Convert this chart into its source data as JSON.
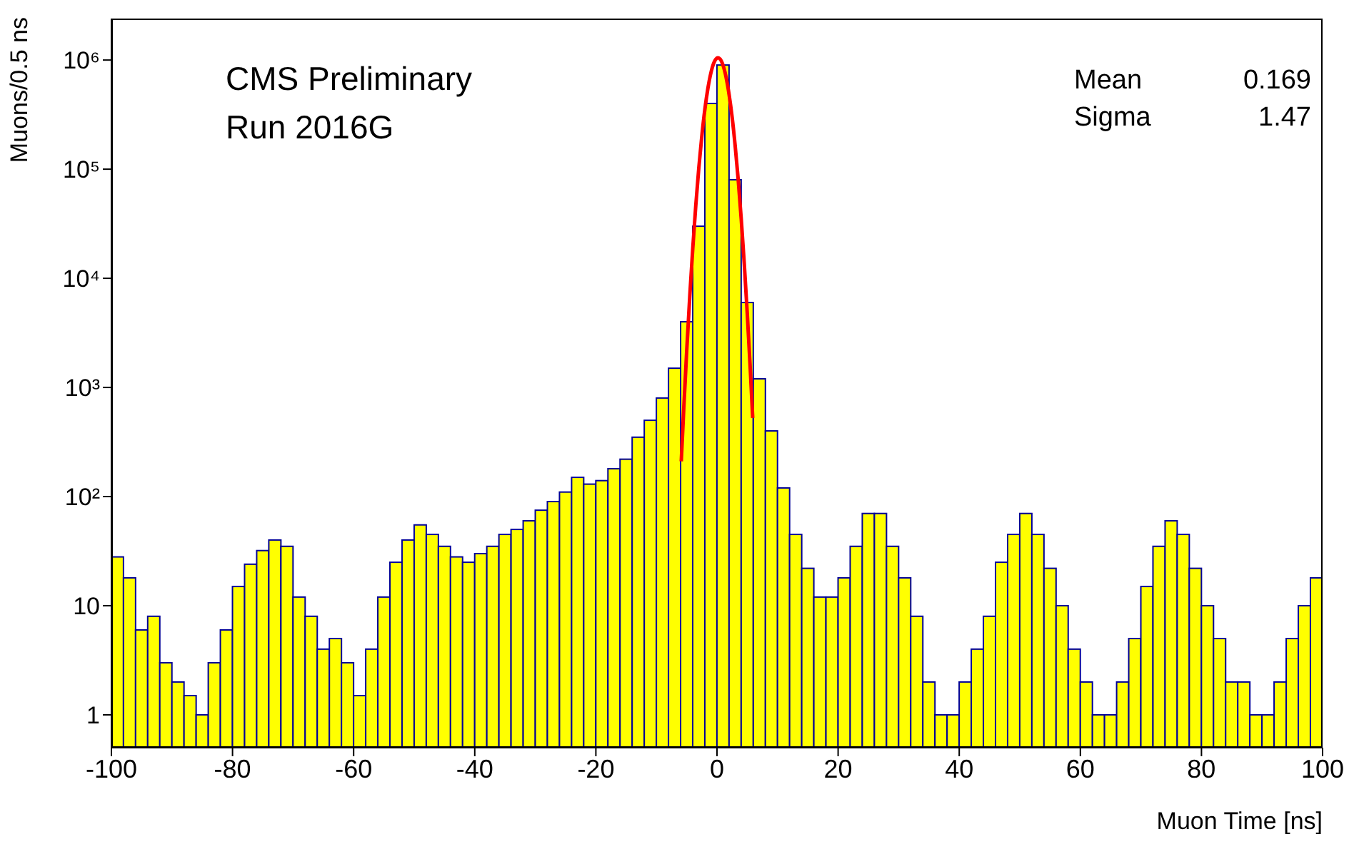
{
  "chart_data": {
    "type": "histogram",
    "xlabel": "Muon Time [ns]",
    "ylabel": "Muons/0.5 ns",
    "annotations": [
      "CMS Preliminary",
      "Run 2016G",
      "Mean",
      "0.169",
      "Sigma",
      "1.47"
    ],
    "bins": [
      -100,
      -98,
      -96,
      -94,
      -92,
      -90,
      -88,
      -86,
      -84,
      -82,
      -80,
      -78,
      -76,
      -74,
      -72,
      -70,
      -68,
      -66,
      -64,
      -62,
      -60,
      -58,
      -56,
      -54,
      -52,
      -50,
      -48,
      -46,
      -44,
      -42,
      -40,
      -38,
      -36,
      -34,
      -32,
      -30,
      -28,
      -26,
      -24,
      -22,
      -20,
      -18,
      -16,
      -14,
      -12,
      -10,
      -8,
      -6,
      -4,
      -2,
      0,
      2,
      4,
      6,
      8,
      10,
      12,
      14,
      16,
      18,
      20,
      22,
      24,
      26,
      28,
      30,
      32,
      34,
      36,
      38,
      40,
      42,
      44,
      46,
      48,
      50,
      52,
      54,
      56,
      58,
      60,
      62,
      64,
      66,
      68,
      70,
      72,
      74,
      76,
      78,
      80,
      82,
      84,
      86,
      88,
      90,
      92,
      94,
      96,
      98,
      100
    ],
    "series": [
      {
        "color": "#ffff00",
        "values": [
          28,
          18,
          6,
          8,
          3,
          2,
          1.5,
          1,
          3,
          6,
          15,
          24,
          32,
          40,
          35,
          12,
          8,
          4,
          5,
          3,
          1.5,
          4,
          12,
          25,
          40,
          55,
          45,
          35,
          28,
          25,
          30,
          35,
          45,
          50,
          60,
          75,
          90,
          110,
          150,
          130,
          140,
          180,
          220,
          350,
          500,
          800,
          1500,
          4000,
          30000,
          400000,
          900000,
          80000,
          6000,
          1200,
          400,
          120,
          45,
          22,
          12,
          12,
          18,
          35,
          70,
          70,
          35,
          18,
          8,
          2,
          1,
          1,
          2,
          4,
          8,
          25,
          45,
          70,
          45,
          22,
          10,
          4,
          2,
          1,
          1,
          2,
          5,
          15,
          35,
          60,
          45,
          22,
          10,
          5,
          2,
          2,
          1,
          1,
          2,
          5,
          10,
          18
        ]
      },
      {
        "type": "line",
        "color": "#ff0000",
        "x": [
          -5.9,
          -5.5,
          -5,
          -4.5,
          -4,
          -3.5,
          -3,
          -2.5,
          -2,
          -1.5,
          -1,
          -0.5,
          0,
          0.169,
          0.5,
          1,
          1.5,
          2,
          2.5,
          3,
          3.5,
          4,
          4.5,
          5,
          5.5,
          5.9
        ],
        "values": [
          210,
          620,
          2170,
          6770,
          18800,
          46600,
          103000,
          202000,
          354000,
          551000,
          765000,
          947000,
          1043000,
          1050000,
          1024000,
          895000,
          697000,
          483000,
          299000,
          164000,
          80600,
          35200,
          13700,
          4740,
          1460,
          525
        ]
      }
    ],
    "xlim": [
      -100,
      100
    ],
    "xticks": [
      -100,
      -80,
      -60,
      -40,
      -20,
      0,
      20,
      40,
      60,
      80,
      100
    ],
    "log": "y",
    "ylim": [
      0.5,
      2400000
    ],
    "yticks": [
      {
        "value": 1,
        "label": "1"
      },
      {
        "value": 10,
        "label": "10"
      },
      {
        "value": 100,
        "label": "10²"
      },
      {
        "value": 1000,
        "label": "10³"
      },
      {
        "value": 10000,
        "label": "10⁴"
      },
      {
        "value": 100000,
        "label": "10⁵"
      },
      {
        "value": 1000000,
        "label": "10⁶"
      }
    ],
    "grid": false,
    "legend": false
  }
}
